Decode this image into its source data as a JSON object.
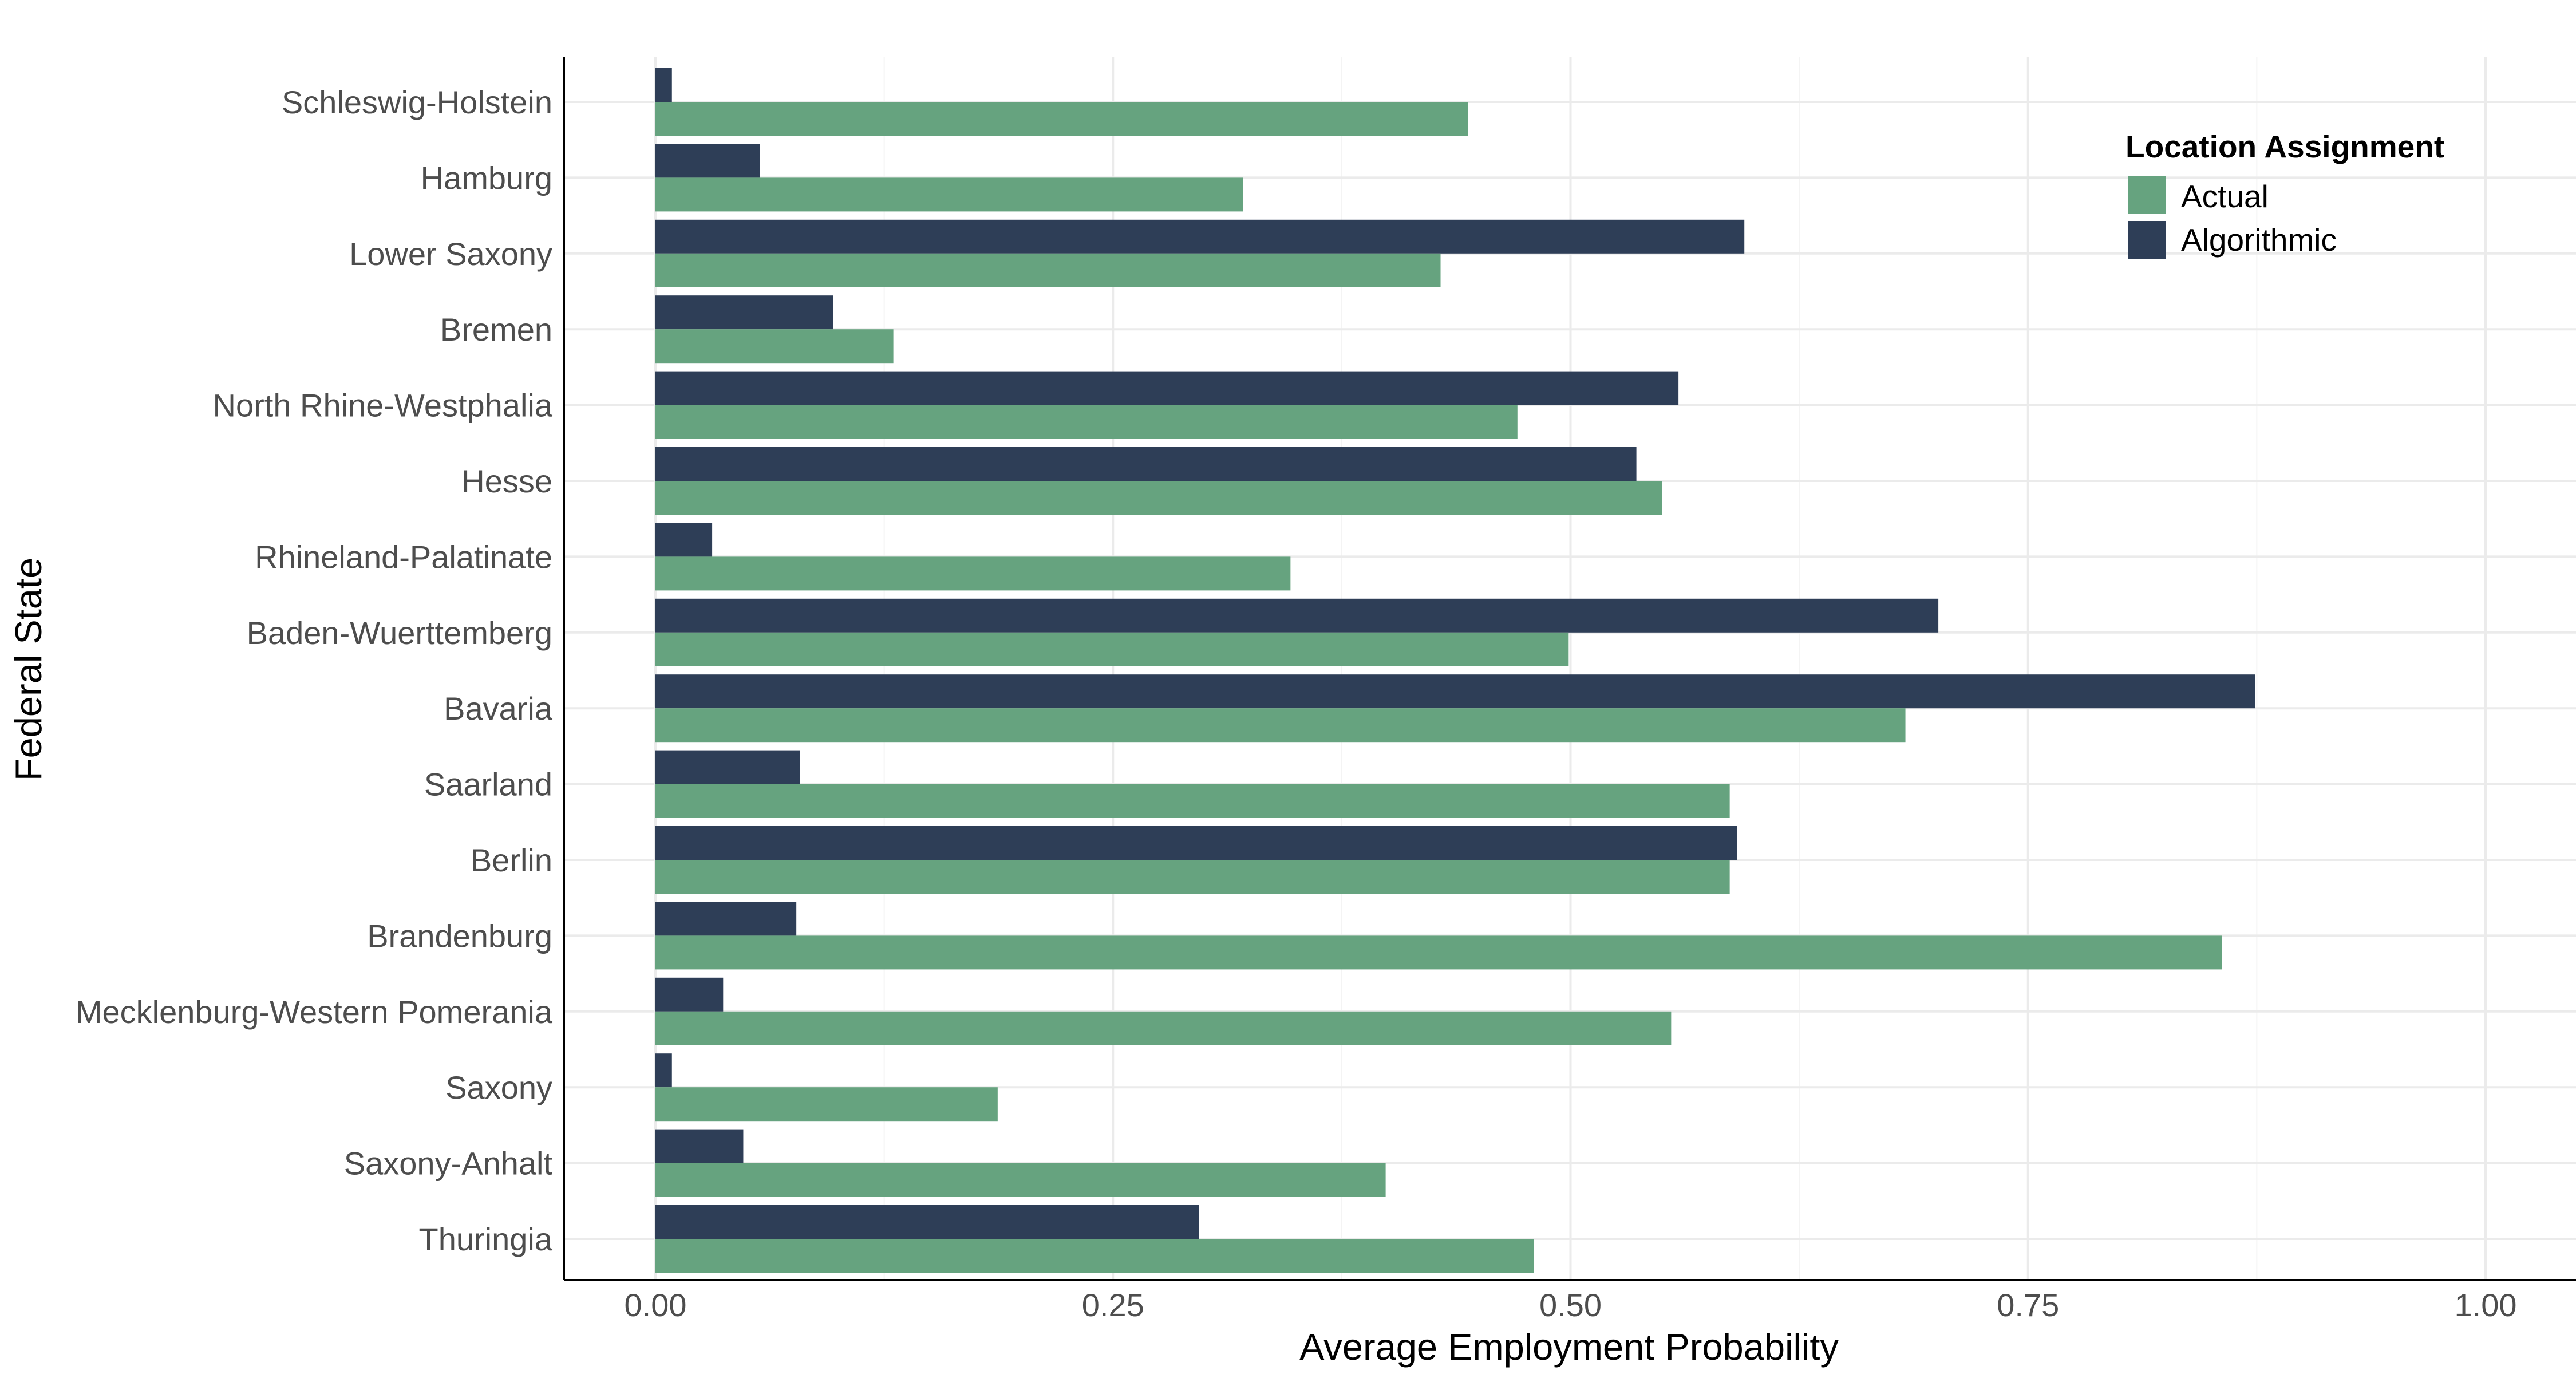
{
  "chart_data": {
    "type": "bar",
    "orientation": "horizontal",
    "title": "",
    "xlabel": "Average Employment Probability",
    "ylabel": "Federal State",
    "xlim": [
      0,
      1
    ],
    "xticks": [
      "0.00",
      "0.25",
      "0.50",
      "0.75",
      "1.00"
    ],
    "grid": true,
    "legend_position": "top-right",
    "legend_title": "Location Assignment",
    "categories": [
      "Schleswig-Holstein",
      "Hamburg",
      "Lower Saxony",
      "Bremen",
      "North Rhine-Westphalia",
      "Hesse",
      "Rhineland-Palatinate",
      "Baden-Wuerttemberg",
      "Bavaria",
      "Saarland",
      "Berlin",
      "Brandenburg",
      "Mecklenburg-Western Pomerania",
      "Saxony",
      "Saxony-Anhalt",
      "Thuringia"
    ],
    "series": [
      {
        "name": "Actual",
        "color": "#66a37f",
        "values": [
          0.444,
          0.321,
          0.429,
          0.13,
          0.471,
          0.55,
          0.347,
          0.499,
          0.683,
          0.587,
          0.587,
          0.856,
          0.555,
          0.187,
          0.399,
          0.48
        ]
      },
      {
        "name": "Algorithmic",
        "color": "#2e3e57",
        "values": [
          0.009,
          0.057,
          0.595,
          0.097,
          0.559,
          0.536,
          0.031,
          0.701,
          0.874,
          0.079,
          0.591,
          0.077,
          0.037,
          0.009,
          0.048,
          0.297
        ]
      }
    ]
  }
}
